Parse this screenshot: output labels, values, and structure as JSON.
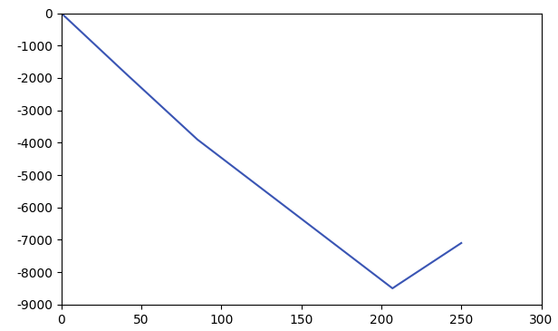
{
  "chart_data": {
    "type": "line",
    "x": [
      0,
      40,
      85,
      150,
      207,
      210,
      250
    ],
    "values": [
      0,
      -1850,
      -3900,
      -6350,
      -8500,
      -8400,
      -7100
    ],
    "color": "#3a55b4",
    "xlim": [
      0,
      300
    ],
    "ylim": [
      -9000,
      0
    ],
    "xticks": [
      0,
      50,
      100,
      150,
      200,
      250,
      300
    ],
    "yticks": [
      -9000,
      -8000,
      -7000,
      -6000,
      -5000,
      -4000,
      -3000,
      -2000,
      -1000,
      0
    ],
    "grid": false
  }
}
